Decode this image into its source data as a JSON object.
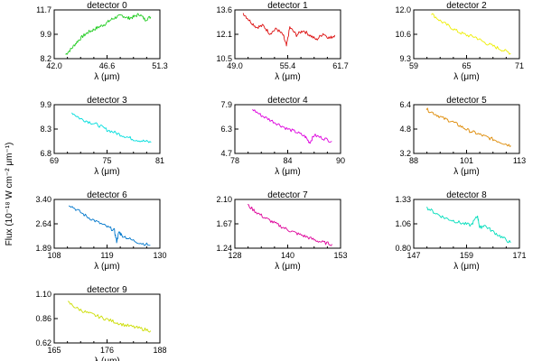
{
  "figure": {
    "ylabel": "Flux (10⁻¹⁸ W cm⁻² μm⁻¹)"
  },
  "chart_data": [
    {
      "type": "line",
      "title": "detector 0",
      "xlabel": "λ (μm)",
      "color": "#22cc22",
      "xlim": [
        42.0,
        51.3
      ],
      "ylim": [
        8.2,
        11.7
      ],
      "xticks": [
        "42.0",
        "46.6",
        "51.3"
      ],
      "yticks": [
        "8.2",
        "9.9",
        "11.7"
      ],
      "x": [
        43.0,
        43.5,
        44.0,
        44.5,
        45.0,
        45.5,
        46.0,
        46.5,
        47.0,
        47.5,
        48.0,
        48.5,
        49.0,
        49.5,
        50.0,
        50.5
      ],
      "y": [
        8.5,
        8.9,
        9.4,
        9.8,
        10.1,
        10.3,
        10.5,
        10.7,
        11.0,
        11.2,
        11.3,
        11.1,
        11.2,
        11.4,
        11.0,
        11.2
      ]
    },
    {
      "type": "line",
      "title": "detector 1",
      "xlabel": "λ (μm)",
      "color": "#dd1111",
      "xlim": [
        49.0,
        61.7
      ],
      "ylim": [
        10.5,
        13.6
      ],
      "xticks": [
        "49.0",
        "55.4",
        "61.7"
      ],
      "yticks": [
        "10.5",
        "12.1",
        "13.6"
      ],
      "x": [
        50.0,
        50.8,
        51.6,
        52.4,
        53.2,
        54.0,
        54.8,
        55.2,
        55.6,
        56.4,
        57.2,
        58.0,
        58.8,
        59.6,
        60.4,
        61.0
      ],
      "y": [
        13.4,
        12.9,
        12.5,
        12.6,
        12.1,
        12.4,
        12.0,
        11.3,
        12.5,
        12.0,
        12.3,
        12.0,
        11.7,
        12.1,
        11.8,
        12.0
      ]
    },
    {
      "type": "line",
      "title": "detector 2",
      "xlabel": "λ (μm)",
      "color": "#eeee00",
      "xlim": [
        59,
        71
      ],
      "ylim": [
        9.3,
        12.0
      ],
      "xticks": [
        "59",
        "65",
        "71"
      ],
      "yticks": [
        "9.3",
        "10.6",
        "12.0"
      ],
      "x": [
        61.0,
        62.0,
        63.0,
        64.0,
        65.0,
        66.0,
        67.0,
        68.0,
        69.0,
        70.0
      ],
      "y": [
        11.8,
        11.4,
        11.1,
        10.8,
        10.6,
        10.5,
        10.2,
        10.0,
        9.8,
        9.6
      ]
    },
    {
      "type": "line",
      "title": "detector 3",
      "xlabel": "λ (μm)",
      "color": "#00dddd",
      "xlim": [
        69,
        81
      ],
      "ylim": [
        6.8,
        9.9
      ],
      "xticks": [
        "69",
        "75",
        "81"
      ],
      "yticks": [
        "6.8",
        "8.3",
        "9.9"
      ],
      "x": [
        71.0,
        72.0,
        73.0,
        74.0,
        75.0,
        76.0,
        77.0,
        78.0,
        79.0,
        80.0
      ],
      "y": [
        9.4,
        9.0,
        8.8,
        8.6,
        8.3,
        8.1,
        7.9,
        7.7,
        7.6,
        7.5
      ]
    },
    {
      "type": "line",
      "title": "detector 4",
      "xlabel": "λ (μm)",
      "color": "#dd00dd",
      "xlim": [
        78,
        90
      ],
      "ylim": [
        4.7,
        7.9
      ],
      "xticks": [
        "78",
        "84",
        "90"
      ],
      "yticks": [
        "4.7",
        "6.3",
        "7.9"
      ],
      "x": [
        80.0,
        81.0,
        82.0,
        83.0,
        84.0,
        85.0,
        86.0,
        86.5,
        87.0,
        88.0,
        89.0
      ],
      "y": [
        7.6,
        7.2,
        6.9,
        6.6,
        6.3,
        6.1,
        5.8,
        5.4,
        5.9,
        5.7,
        5.5
      ]
    },
    {
      "type": "line",
      "title": "detector 5",
      "xlabel": "λ (μm)",
      "color": "#dd8800",
      "xlim": [
        88,
        113
      ],
      "ylim": [
        3.2,
        6.4
      ],
      "xticks": [
        "88",
        "101",
        "113"
      ],
      "yticks": [
        "3.2",
        "4.8",
        "6.4"
      ],
      "x": [
        91.0,
        93.0,
        95.0,
        97.0,
        99.0,
        101.0,
        103.0,
        105.0,
        107.0,
        109.0,
        111.0
      ],
      "y": [
        6.1,
        5.8,
        5.5,
        5.3,
        5.0,
        4.7,
        4.5,
        4.3,
        4.1,
        3.9,
        3.7
      ]
    },
    {
      "type": "line",
      "title": "detector 6",
      "xlabel": "λ (μm)",
      "color": "#0077cc",
      "xlim": [
        108,
        130
      ],
      "ylim": [
        1.89,
        3.4
      ],
      "xticks": [
        "108",
        "119",
        "130"
      ],
      "yticks": [
        "1.89",
        "2.64",
        "3.40"
      ],
      "x": [
        111.0,
        113.0,
        115.0,
        117.0,
        119.0,
        120.5,
        121.0,
        121.5,
        122.0,
        124.0,
        126.0,
        128.0
      ],
      "y": [
        3.25,
        3.05,
        2.85,
        2.7,
        2.55,
        2.45,
        2.1,
        2.4,
        2.3,
        2.15,
        2.05,
        1.98
      ]
    },
    {
      "type": "line",
      "title": "detector 7",
      "xlabel": "λ (μm)",
      "color": "#dd0099",
      "xlim": [
        128,
        153
      ],
      "ylim": [
        1.24,
        2.1
      ],
      "xticks": [
        "128",
        "140",
        "153"
      ],
      "yticks": [
        "1.24",
        "1.67",
        "2.10"
      ],
      "x": [
        131.0,
        133.0,
        135.0,
        137.0,
        139.0,
        141.0,
        143.0,
        145.0,
        147.0,
        149.0,
        151.0
      ],
      "y": [
        2.0,
        1.88,
        1.78,
        1.7,
        1.62,
        1.55,
        1.49,
        1.44,
        1.38,
        1.34,
        1.31
      ]
    },
    {
      "type": "line",
      "title": "detector 8",
      "xlabel": "λ (μm)",
      "color": "#00ddbb",
      "xlim": [
        147,
        171
      ],
      "ylim": [
        0.8,
        1.33
      ],
      "xticks": [
        "147",
        "159",
        "171"
      ],
      "yticks": [
        "0.80",
        "1.06",
        "1.33"
      ],
      "x": [
        150.0,
        152.0,
        154.0,
        156.0,
        158.0,
        160.0,
        161.5,
        162.0,
        163.0,
        165.0,
        167.0,
        169.0
      ],
      "y": [
        1.24,
        1.18,
        1.13,
        1.1,
        1.07,
        1.05,
        1.15,
        1.02,
        1.05,
        0.98,
        0.92,
        0.86
      ]
    },
    {
      "type": "line",
      "title": "detector 9",
      "xlabel": "λ (μm)",
      "color": "#ccdd00",
      "xlim": [
        165,
        188
      ],
      "ylim": [
        0.62,
        1.1
      ],
      "xticks": [
        "165",
        "176",
        "188"
      ],
      "yticks": [
        "0.62",
        "0.86",
        "1.10"
      ],
      "x": [
        168.0,
        170.0,
        172.0,
        174.0,
        176.0,
        178.0,
        180.0,
        182.0,
        184.0,
        186.0
      ],
      "y": [
        1.02,
        0.96,
        0.92,
        0.89,
        0.86,
        0.83,
        0.8,
        0.78,
        0.76,
        0.74
      ]
    }
  ]
}
